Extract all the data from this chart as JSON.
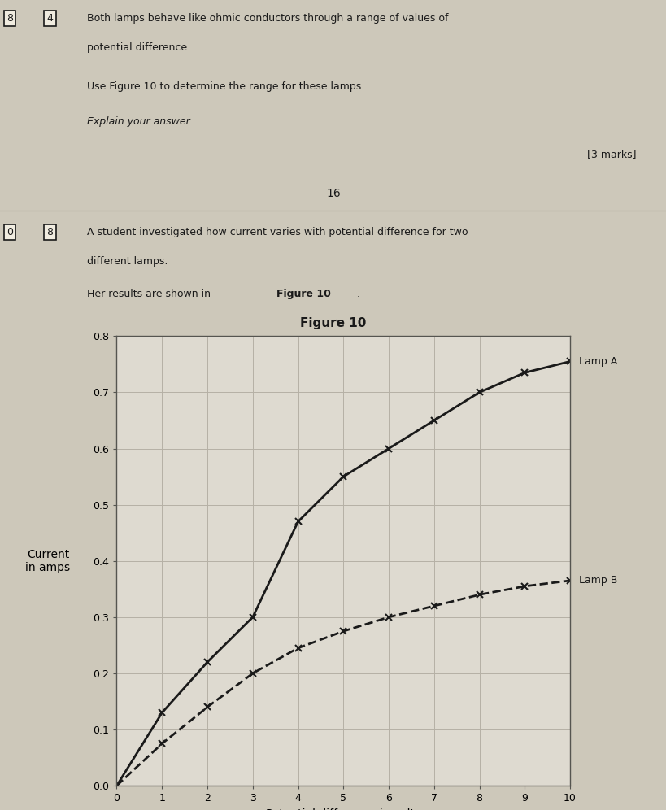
{
  "page_number": "16",
  "question_top": {
    "box_label": "4",
    "prefix_label": "8",
    "text_line1": "Both lamps behave like ohmic conductors through a range of values of",
    "text_line2": "potential difference.",
    "text_line3": "Use Figure 10 to determine the range for these lamps.",
    "text_line4": "Explain your answer.",
    "marks": "[3 marks]"
  },
  "question_bottom": {
    "box_label1": "0",
    "box_label2": "8",
    "text_line1": "A student investigated how current varies with potential difference for two",
    "text_line2": "different lamps.",
    "text_line3": "Her results are shown in ",
    "text_bold": "Figure 10",
    "text_end": "."
  },
  "figure_title": "Figure 10",
  "lamp_A": {
    "x": [
      0,
      1,
      2,
      3,
      4,
      5,
      6,
      7,
      8,
      9,
      10
    ],
    "y": [
      0.0,
      0.13,
      0.22,
      0.3,
      0.47,
      0.55,
      0.6,
      0.65,
      0.7,
      0.735,
      0.755
    ],
    "label": "Lamp A",
    "color": "#1a1a1a",
    "linestyle": "-",
    "marker": "x",
    "linewidth": 2.0
  },
  "lamp_B": {
    "x": [
      0,
      1,
      2,
      3,
      4,
      5,
      6,
      7,
      8,
      9,
      10
    ],
    "y": [
      0.0,
      0.075,
      0.14,
      0.2,
      0.245,
      0.275,
      0.3,
      0.32,
      0.34,
      0.355,
      0.365
    ],
    "label": "Lamp B",
    "color": "#1a1a1a",
    "linestyle": "--",
    "marker": "x",
    "linewidth": 2.0
  },
  "xlabel": "Potential difference in volts",
  "ylabel_line1": "Current",
  "ylabel_line2": "in amps",
  "xlim": [
    0,
    10
  ],
  "ylim": [
    0.0,
    0.8
  ],
  "xticks": [
    0,
    1,
    2,
    3,
    4,
    5,
    6,
    7,
    8,
    9,
    10
  ],
  "yticks": [
    0.0,
    0.1,
    0.2,
    0.3,
    0.4,
    0.5,
    0.6,
    0.7,
    0.8
  ],
  "ytick_labels": [
    "0.0",
    "0.1",
    "0.2",
    "0.3",
    "0.4",
    "0.5",
    "0.6",
    "0.7",
    "0.8"
  ],
  "background_color": "#cdc8ba",
  "plot_bg_color": "#dedad0",
  "grid_color": "#b5b0a5",
  "text_color": "#1a1a1a",
  "font_size_axis_label": 10,
  "font_size_tick": 9,
  "font_size_legend": 9,
  "font_size_figure_title": 11,
  "font_size_question_text": 9,
  "fig_width": 8.2,
  "fig_height": 9.96
}
